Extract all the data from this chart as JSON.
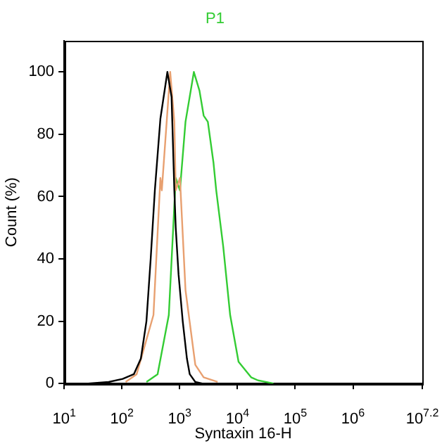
{
  "chart_data": {
    "type": "line",
    "xlabel": "Syntaxin 16-H",
    "ylabel": "Count (%)",
    "log": "x",
    "legend": "top",
    "grid": false,
    "marker": "none",
    "line_style": "solid",
    "xlim": [
      10,
      15848932
    ],
    "xticks": [
      {
        "value": 10,
        "label": "10$^{1}$"
      },
      {
        "value": 100,
        "label": "10$^{2}$"
      },
      {
        "value": 1000,
        "label": "10$^{3}$"
      },
      {
        "value": 10000,
        "label": "10$^{4}$"
      },
      {
        "value": 100000,
        "label": "10$^{5}$"
      },
      {
        "value": 1000000,
        "label": "10$^{6}$"
      },
      {
        "value": 15848932,
        "label": "10$^{7.2}$"
      }
    ],
    "ylim": [
      0,
      110
    ],
    "yticks": [
      0,
      20,
      40,
      60,
      80,
      100
    ],
    "series": [
      {
        "color": "#000000",
        "x": [
          26,
          59,
          103,
          161,
          213,
          266,
          315,
          372,
          464,
          613,
          724,
          809,
          855,
          957,
          1130,
          1336,
          1494,
          1866,
          2460
        ],
        "values": [
          0,
          0.5,
          1.5,
          3,
          8,
          20,
          40,
          62,
          85,
          100,
          92,
          62,
          50,
          35,
          20,
          8,
          3,
          0.5,
          0
        ]
      },
      {
        "color": "#e8a070",
        "x": [
          116,
          180,
          352,
          464,
          491,
          686,
          809,
          855,
          1011,
          1262,
          1866,
          2601,
          4540
        ],
        "values": [
          0.5,
          3,
          22,
          66,
          62,
          100,
          84,
          62,
          66,
          30,
          6,
          2,
          0.5
        ]
      },
      {
        "name": "P1",
        "color": "#33cc33",
        "x": [
          266,
          415,
          649,
          855,
          1011,
          1262,
          1762,
          2203,
          2601,
          3074,
          3843,
          4295,
          5675,
          7482,
          10450,
          17250,
          22770,
          35540,
          41980
        ],
        "values": [
          0.5,
          3,
          22,
          66,
          62,
          84,
          100,
          94,
          86,
          84,
          71,
          62,
          44,
          22,
          7,
          2,
          1,
          0.3,
          0
        ]
      }
    ]
  }
}
